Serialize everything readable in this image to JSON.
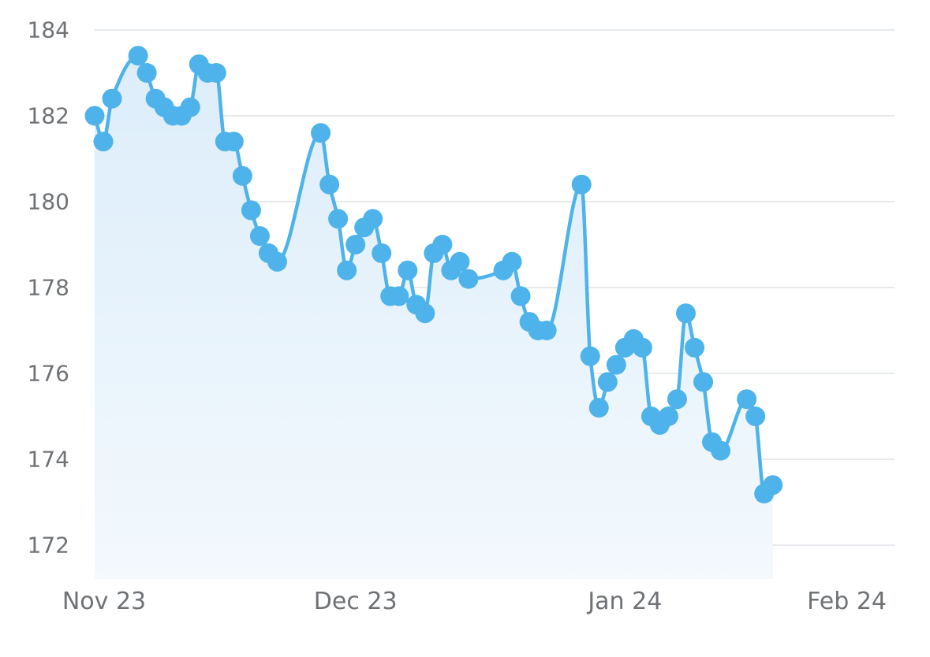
{
  "chart_data": {
    "type": "line",
    "title": "",
    "xlabel": "",
    "ylabel": "",
    "ylim": [
      171.2,
      184.4
    ],
    "yticks": [
      172,
      174,
      176,
      178,
      180,
      182,
      184
    ],
    "xlim": [
      "2023-11-01",
      "2024-02-01"
    ],
    "xticks": [
      {
        "date": "2023-11-01",
        "label": "Nov 23"
      },
      {
        "date": "2023-12-01",
        "label": "Dec 23"
      },
      {
        "date": "2024-01-01",
        "label": "Jan 24"
      },
      {
        "date": "2024-02-01",
        "label": "Feb 24"
      }
    ],
    "grid": true,
    "area_fill": true,
    "colors": {
      "line": "#4db3ea",
      "fill_top": "#dcedfa",
      "fill_bottom": "#f3f9fd",
      "grid": "#dfe3e7",
      "text": "#6f7275"
    },
    "series": [
      {
        "points": [
          [
            "2023-11-01",
            182.0
          ],
          [
            "2023-11-02",
            181.4
          ],
          [
            "2023-11-03",
            182.4
          ],
          [
            "2023-11-06",
            183.4
          ],
          [
            "2023-11-07",
            183.0
          ],
          [
            "2023-11-08",
            182.4
          ],
          [
            "2023-11-09",
            182.2
          ],
          [
            "2023-11-10",
            182.0
          ],
          [
            "2023-11-11",
            182.0
          ],
          [
            "2023-11-12",
            182.2
          ],
          [
            "2023-11-13",
            183.2
          ],
          [
            "2023-11-14",
            183.0
          ],
          [
            "2023-11-15",
            183.0
          ],
          [
            "2023-11-16",
            181.4
          ],
          [
            "2023-11-17",
            181.4
          ],
          [
            "2023-11-18",
            180.6
          ],
          [
            "2023-11-19",
            179.8
          ],
          [
            "2023-11-20",
            179.2
          ],
          [
            "2023-11-21",
            178.8
          ],
          [
            "2023-11-22",
            178.6
          ],
          [
            "2023-11-27",
            181.6
          ],
          [
            "2023-11-28",
            180.4
          ],
          [
            "2023-11-29",
            179.6
          ],
          [
            "2023-11-30",
            178.4
          ],
          [
            "2023-12-01",
            179.0
          ],
          [
            "2023-12-02",
            179.4
          ],
          [
            "2023-12-03",
            179.6
          ],
          [
            "2023-12-04",
            178.8
          ],
          [
            "2023-12-05",
            177.8
          ],
          [
            "2023-12-06",
            177.8
          ],
          [
            "2023-12-07",
            178.4
          ],
          [
            "2023-12-08",
            177.6
          ],
          [
            "2023-12-09",
            177.4
          ],
          [
            "2023-12-10",
            178.8
          ],
          [
            "2023-12-11",
            179.0
          ],
          [
            "2023-12-12",
            178.4
          ],
          [
            "2023-12-13",
            178.6
          ],
          [
            "2023-12-14",
            178.2
          ],
          [
            "2023-12-18",
            178.4
          ],
          [
            "2023-12-19",
            178.6
          ],
          [
            "2023-12-20",
            177.8
          ],
          [
            "2023-12-21",
            177.2
          ],
          [
            "2023-12-22",
            177.0
          ],
          [
            "2023-12-23",
            177.0
          ],
          [
            "2023-12-27",
            180.4
          ],
          [
            "2023-12-28",
            176.4
          ],
          [
            "2023-12-29",
            175.2
          ],
          [
            "2023-12-30",
            175.8
          ],
          [
            "2023-12-31",
            176.2
          ],
          [
            "2024-01-01",
            176.6
          ],
          [
            "2024-01-02",
            176.8
          ],
          [
            "2024-01-03",
            176.6
          ],
          [
            "2024-01-04",
            175.0
          ],
          [
            "2024-01-05",
            174.8
          ],
          [
            "2024-01-06",
            175.0
          ],
          [
            "2024-01-07",
            175.4
          ],
          [
            "2024-01-08",
            177.4
          ],
          [
            "2024-01-09",
            176.6
          ],
          [
            "2024-01-10",
            175.8
          ],
          [
            "2024-01-11",
            174.4
          ],
          [
            "2024-01-12",
            174.2
          ],
          [
            "2024-01-15",
            175.4
          ],
          [
            "2024-01-16",
            175.0
          ],
          [
            "2024-01-17",
            173.2
          ],
          [
            "2024-01-18",
            173.4
          ]
        ]
      }
    ]
  }
}
